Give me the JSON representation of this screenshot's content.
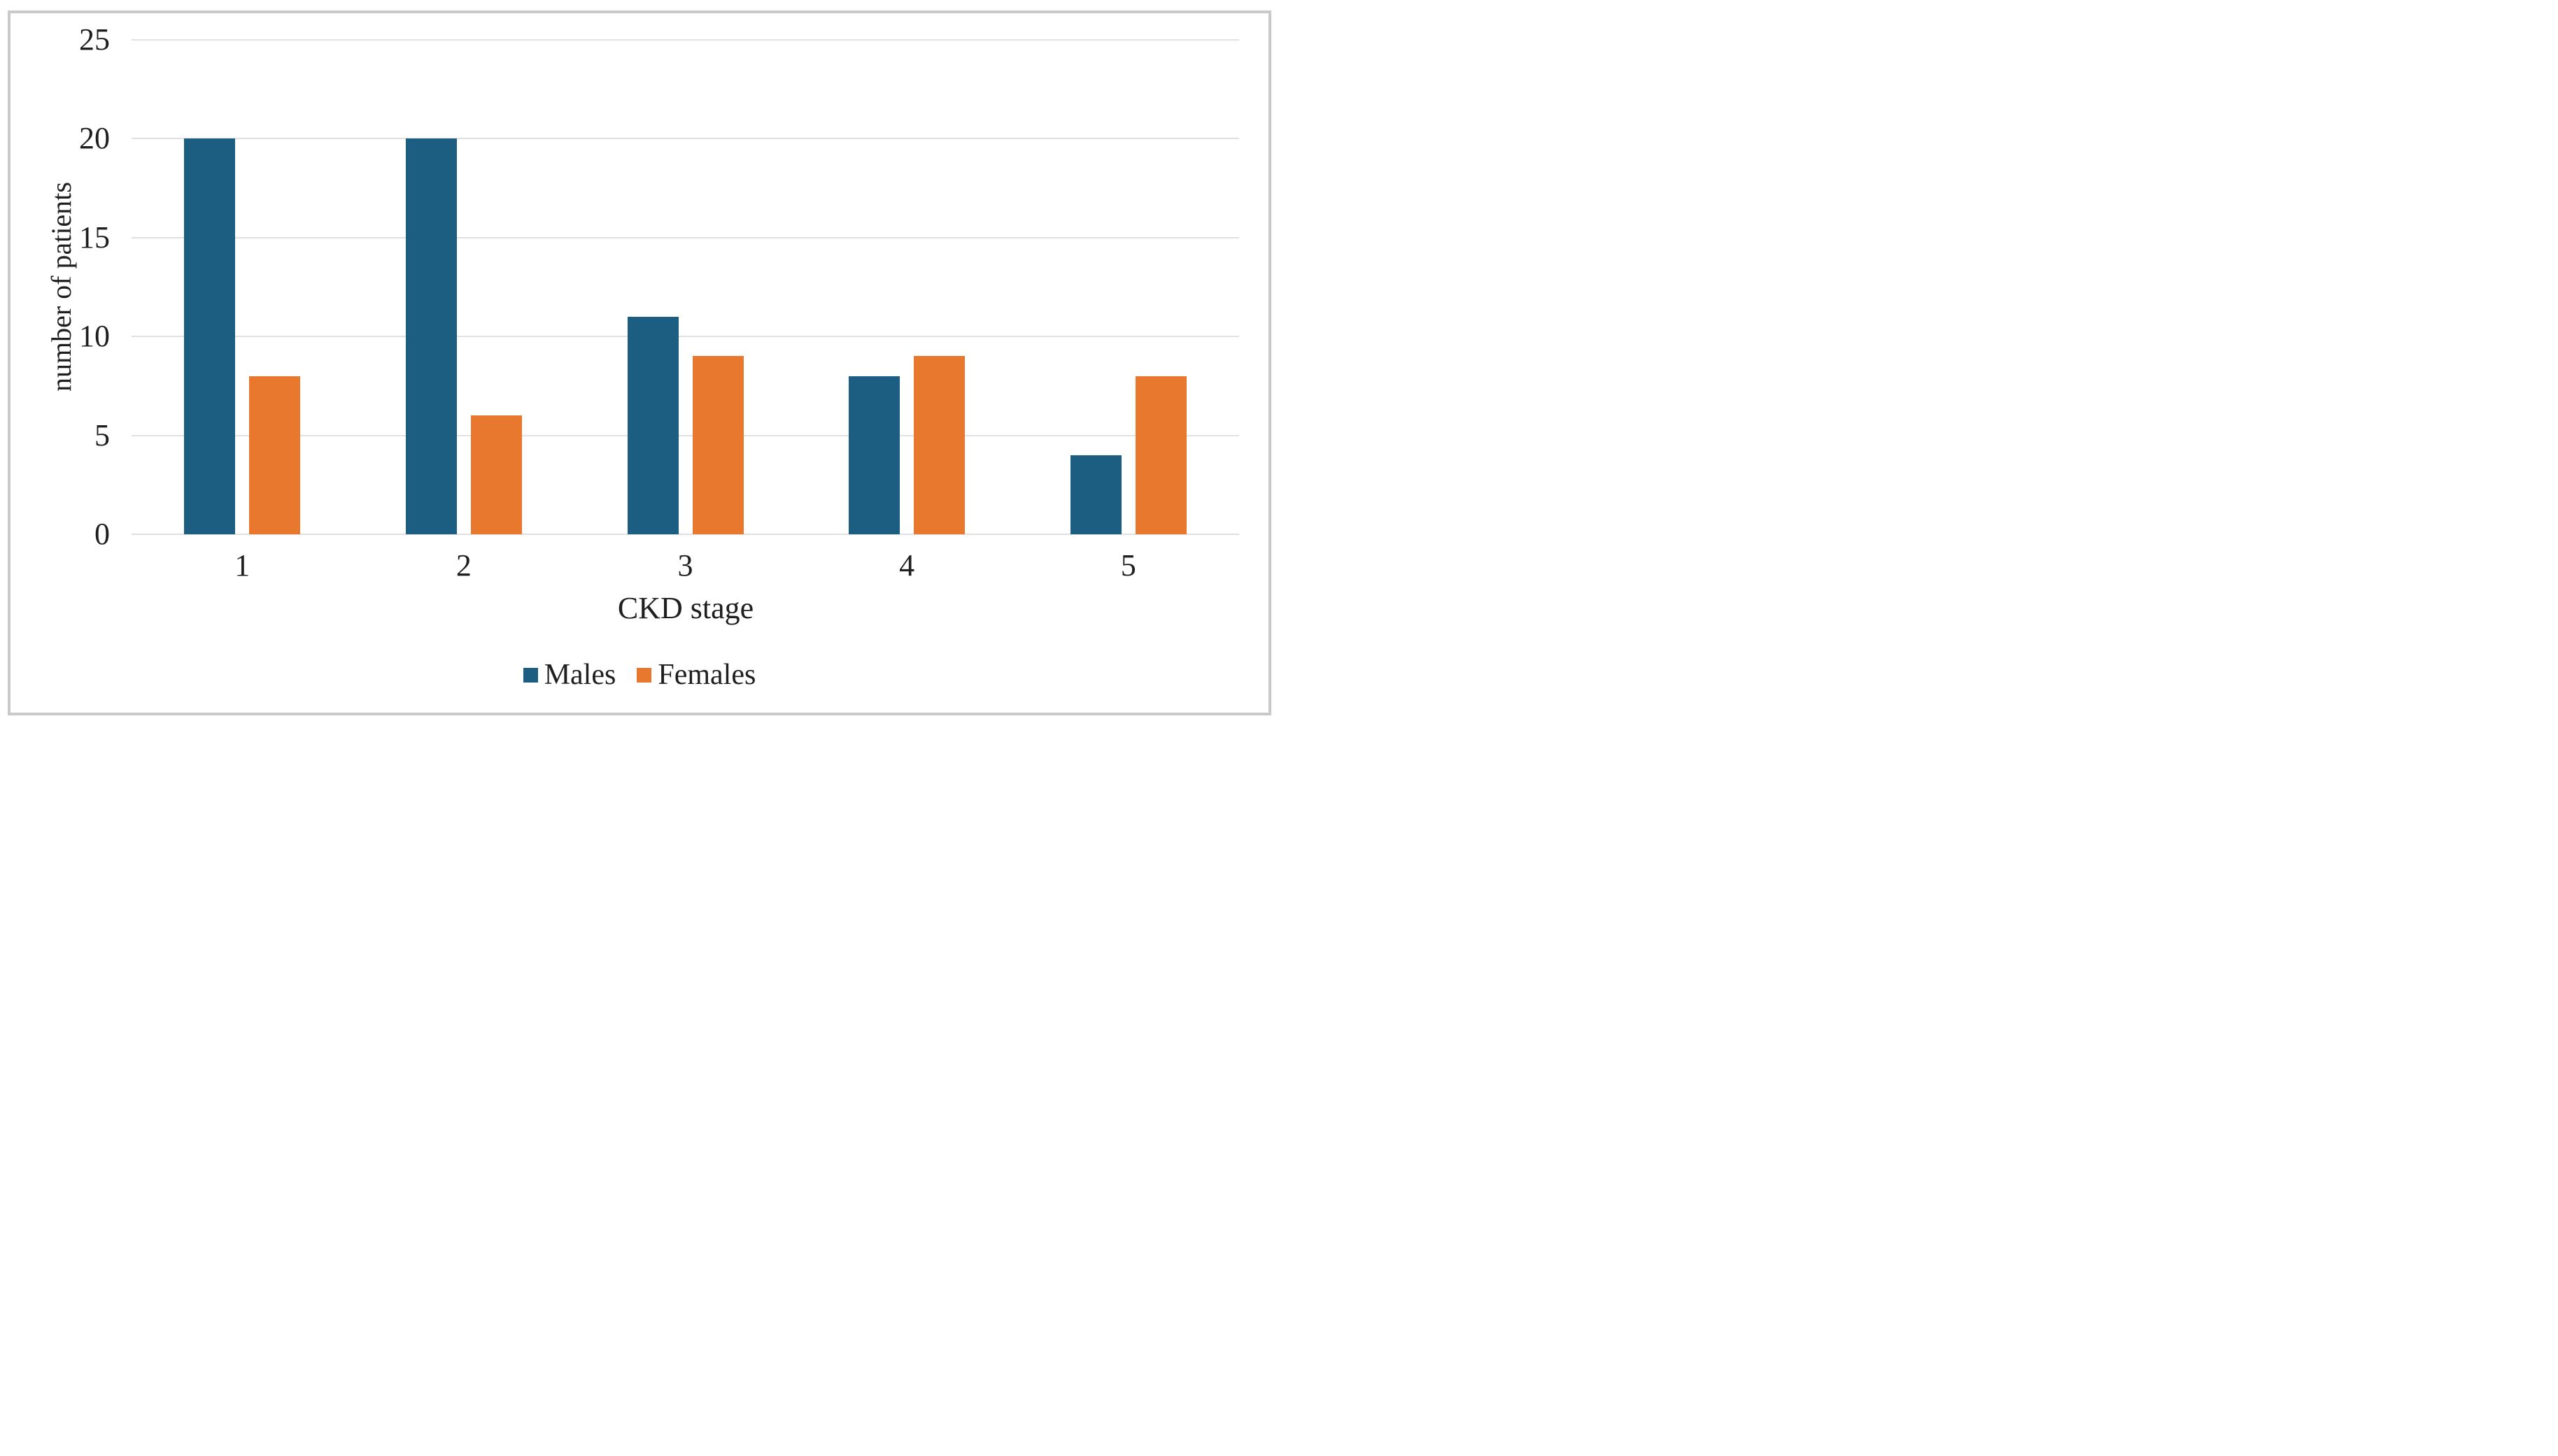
{
  "chart_data": {
    "type": "bar",
    "title": "",
    "categories": [
      "1",
      "2",
      "3",
      "4",
      "5"
    ],
    "series": [
      {
        "name": "Males",
        "color": "#1b5e82",
        "values": [
          20,
          20,
          11,
          8,
          4
        ]
      },
      {
        "name": "Females",
        "color": "#e7782e",
        "values": [
          8,
          6,
          9,
          9,
          8
        ]
      }
    ],
    "xlabel": "CKD stage",
    "ylabel": "number of patients",
    "ylim": [
      0,
      25
    ],
    "ytick_step": 5,
    "yticks": [
      25,
      20,
      15,
      10,
      5,
      0
    ],
    "grid": true,
    "legend_position": "bottom"
  },
  "colors": {
    "gridline": "#e1e1e1",
    "frame_border": "#c9c9c9",
    "text": "#1f1f1f",
    "background": "#ffffff"
  }
}
